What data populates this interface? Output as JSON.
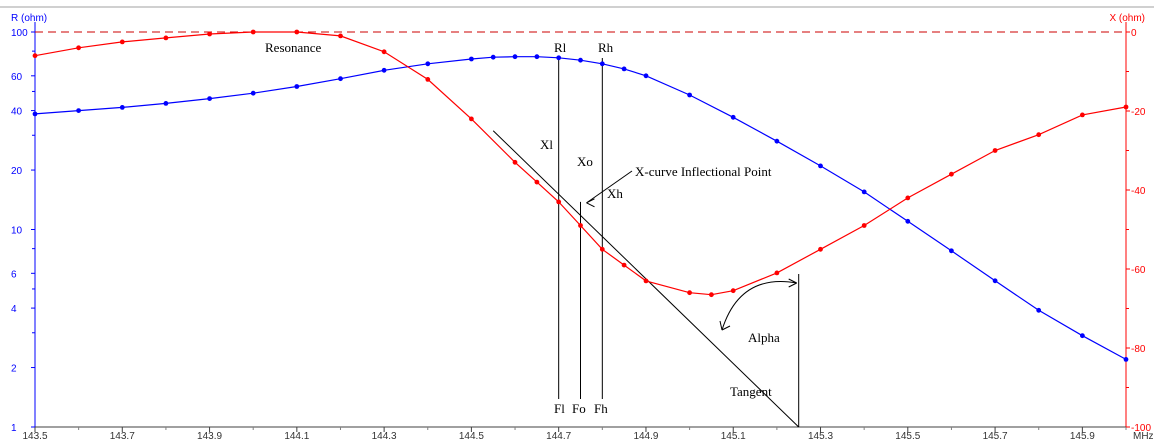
{
  "chart_data": {
    "type": "line",
    "x_unit": "MHz",
    "x_ticks": [
      "143.5",
      "143.7",
      "143.9",
      "144.1",
      "144.3",
      "144.5",
      "144.7",
      "144.9",
      "145.1",
      "145.3",
      "145.5",
      "145.7",
      "145.9"
    ],
    "xlim": [
      143.5,
      146.0
    ],
    "left_axis": {
      "label": "R (ohm)",
      "scale": "log",
      "ylim": [
        1,
        100
      ],
      "ticks": [
        "1",
        "2",
        "4",
        "6",
        "10",
        "20",
        "40",
        "60",
        "100"
      ],
      "color": "#0000ff"
    },
    "right_axis": {
      "label": "X (ohm)",
      "scale": "linear",
      "ylim": [
        -100,
        0
      ],
      "ticks": [
        "0",
        "-20",
        "-40",
        "-60",
        "-80",
        "-100"
      ],
      "color": "#ff0000"
    },
    "colors": {
      "r_series": "#0000ff",
      "x_series": "#ff0000",
      "annotation": "#000000",
      "zero_line": "#cc0000"
    },
    "series": [
      {
        "axis": "left",
        "color": "#0000ff",
        "x": [
          143.5,
          143.6,
          143.7,
          143.8,
          143.9,
          144.0,
          144.1,
          144.2,
          144.3,
          144.4,
          144.5,
          144.55,
          144.6,
          144.65,
          144.7,
          144.75,
          144.8,
          144.85,
          144.9,
          145.0,
          145.1,
          145.2,
          145.3,
          145.4,
          145.5,
          145.6,
          145.7,
          145.8,
          145.9,
          146.0
        ],
        "y": [
          38.5,
          40.0,
          41.5,
          43.5,
          46.0,
          49.0,
          53.0,
          58.0,
          64.0,
          69.0,
          73.0,
          74.5,
          75.0,
          75.0,
          74.0,
          72.0,
          69.0,
          65.0,
          60.0,
          48.0,
          37.0,
          28.0,
          21.0,
          15.5,
          11.0,
          7.8,
          5.5,
          3.9,
          2.9,
          2.2
        ]
      },
      {
        "axis": "right",
        "color": "#ff0000",
        "x": [
          143.5,
          143.6,
          143.7,
          143.8,
          143.9,
          144.0,
          144.1,
          144.2,
          144.3,
          144.4,
          144.5,
          144.6,
          144.65,
          144.7,
          144.75,
          144.8,
          144.85,
          144.9,
          145.0,
          145.05,
          145.1,
          145.2,
          145.3,
          145.4,
          145.5,
          145.6,
          145.7,
          145.8,
          145.9,
          146.0
        ],
        "y": [
          -6,
          -4,
          -2.5,
          -1.5,
          -0.5,
          0,
          0,
          -1,
          -5,
          -12,
          -22,
          -33,
          -38,
          -43,
          -49,
          -55,
          -59,
          -63,
          -66,
          -66.5,
          -65.5,
          -61,
          -55,
          -49,
          -42,
          -36,
          -30,
          -26,
          -21,
          -19
        ]
      }
    ],
    "annotations": {
      "resonance": "Resonance",
      "rl": "Rl",
      "rh": "Rh",
      "xl": "Xl",
      "xo": "Xo",
      "xh": "Xh",
      "inflection": "X-curve Inflectional Point",
      "fl": "Fl",
      "fo": "Fo",
      "fh": "Fh",
      "alpha": "Alpha",
      "tangent": "Tangent"
    },
    "markers": {
      "fl": 144.7,
      "fo": 144.75,
      "fh": 144.8
    },
    "tangent": {
      "x": [
        144.55,
        145.25
      ],
      "y": [
        -25,
        -100
      ]
    },
    "grid": false,
    "legend": "none"
  }
}
